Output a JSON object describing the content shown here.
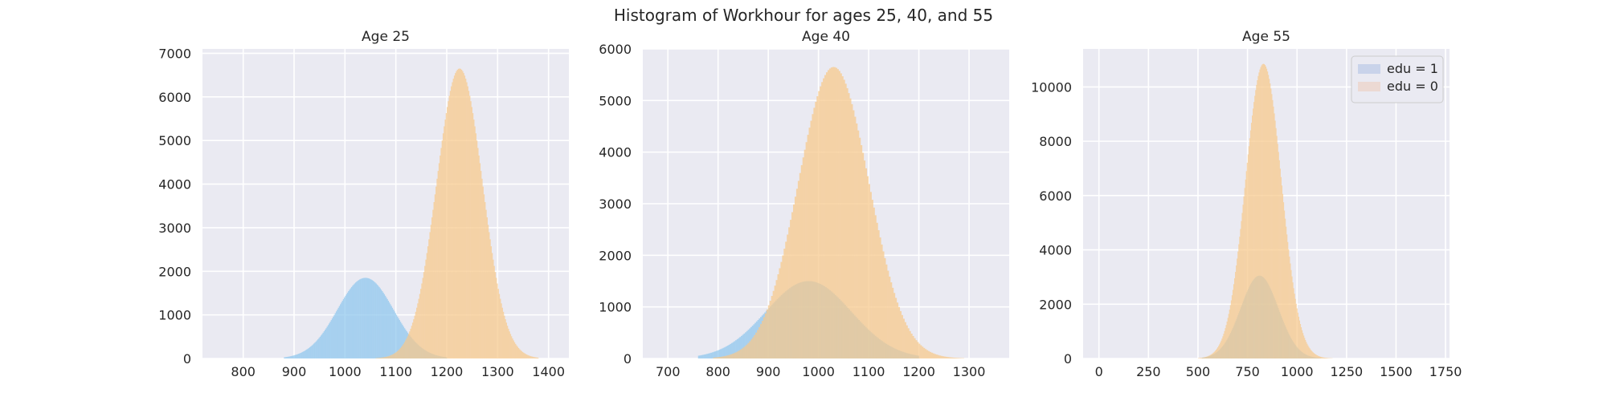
{
  "suptitle": "Histogram of Workhour for ages 25, 40, and 55",
  "colors": {
    "edu1": "#8ec7ee",
    "edu0": "#f8c98a",
    "axes_background": "#eaeaf2",
    "grid": "#ffffff"
  },
  "legend": {
    "location": "upper right",
    "panel": 2,
    "entries": [
      "edu = 1",
      "edu = 0"
    ]
  },
  "chart_data": [
    {
      "type": "histogram",
      "title": "Age 25",
      "xlabel": "",
      "ylabel": "",
      "xlim": [
        720,
        1440
      ],
      "ylim": [
        0,
        7100
      ],
      "xticks": [
        800,
        900,
        1000,
        1100,
        1200,
        1300,
        1400
      ],
      "yticks": [
        0,
        1000,
        2000,
        3000,
        4000,
        5000,
        6000,
        7000
      ],
      "grid": true,
      "series": [
        {
          "name": "edu = 1",
          "distribution": "approximately normal",
          "mean": 1040,
          "sd": 55,
          "peak_count": 1850,
          "range": [
            880,
            1200
          ]
        },
        {
          "name": "edu = 0",
          "distribution": "approximately normal",
          "mean": 1225,
          "sd": 45,
          "peak_count": 6650,
          "range": [
            1060,
            1380
          ]
        }
      ]
    },
    {
      "type": "histogram",
      "title": "Age 40",
      "xlabel": "",
      "ylabel": "",
      "xlim": [
        650,
        1380
      ],
      "ylim": [
        0,
        6000
      ],
      "xticks": [
        700,
        800,
        900,
        1000,
        1100,
        1200,
        1300
      ],
      "yticks": [
        0,
        1000,
        2000,
        3000,
        4000,
        5000,
        6000
      ],
      "grid": true,
      "series": [
        {
          "name": "edu = 1",
          "distribution": "approximately normal",
          "mean": 980,
          "sd": 85,
          "peak_count": 1500,
          "range": [
            760,
            1200
          ]
        },
        {
          "name": "edu = 0",
          "distribution": "approximately normal",
          "mean": 1030,
          "sd": 70,
          "peak_count": 5650,
          "range": [
            790,
            1290
          ]
        }
      ]
    },
    {
      "type": "histogram",
      "title": "Age 55",
      "xlabel": "",
      "ylabel": "",
      "xlim": [
        -80,
        1770
      ],
      "ylim": [
        0,
        11400
      ],
      "xticks": [
        0,
        250,
        500,
        750,
        1000,
        1250,
        1500,
        1750
      ],
      "yticks": [
        0,
        2000,
        4000,
        6000,
        8000,
        10000
      ],
      "grid": true,
      "series": [
        {
          "name": "edu = 1",
          "distribution": "approximately normal",
          "mean": 810,
          "sd": 95,
          "peak_count": 3050,
          "range": [
            520,
            1120
          ]
        },
        {
          "name": "edu = 0",
          "distribution": "approximately normal",
          "mean": 830,
          "sd": 90,
          "peak_count": 10850,
          "range": [
            500,
            1180
          ]
        }
      ]
    }
  ]
}
